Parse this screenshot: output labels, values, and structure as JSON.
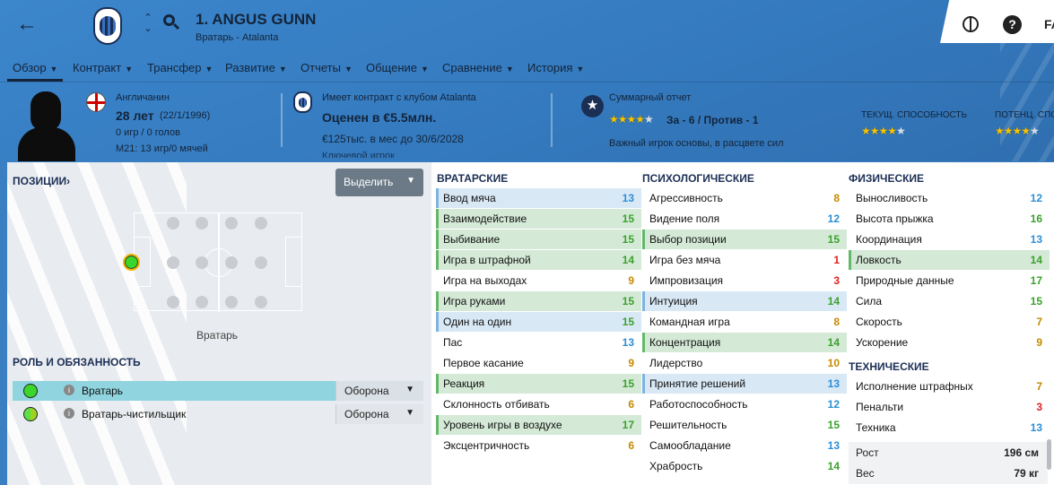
{
  "header": {
    "player_name": "1. ANGUS GUNN",
    "player_sub": "Вратарь - Atalanta",
    "fav_label": "FA"
  },
  "nav": [
    {
      "label": "Обзор"
    },
    {
      "label": "Контракт"
    },
    {
      "label": "Трансфер"
    },
    {
      "label": "Развитие"
    },
    {
      "label": "Отчеты"
    },
    {
      "label": "Общение"
    },
    {
      "label": "Сравнение"
    },
    {
      "label": "История"
    }
  ],
  "bio": {
    "nationality": "Англичанин",
    "age": "28 лет",
    "dob": "(22/1/1996)",
    "stats": "0 игр / 0 голов",
    "u21": "M21: 13 игр/0 мячей"
  },
  "contract": {
    "title": "Имеет контракт с клубом Atalanta",
    "value": "Оценен в €5.5млн.",
    "wage": "€125тыс. в мес до 30/6/2028",
    "role_partial": "Ключевой игрок"
  },
  "report": {
    "title": "Суммарный отчет",
    "stars": 4,
    "pros_cons": "За - 6 / Против - 1",
    "note": "Важный игрок основы, в расцвете сил"
  },
  "ability": {
    "current_label": "ТЕКУЩ. СПОСОБНОСТЬ",
    "current_stars": 4,
    "potential_label": "ПОТЕНЦ. СПОС",
    "potential_stars": 4
  },
  "left": {
    "positions_label": "ПОЗИЦИИ",
    "highlight_btn": "Выделить",
    "position_name": "Вратарь",
    "roles_label": "РОЛЬ И ОБЯЗАННОСТЬ",
    "roles": [
      {
        "name": "Вратарь",
        "duty": "Оборона",
        "selected": true
      },
      {
        "name": "Вратарь-чистильщик",
        "duty": "Оборона",
        "selected": false
      }
    ]
  },
  "attributes": {
    "goalkeeping": {
      "title": "ВРАТАРСКИЕ",
      "items": [
        {
          "name": "Ввод мяча",
          "value": 13,
          "hl": "b"
        },
        {
          "name": "Взаимодействие",
          "value": 15,
          "hl": "g"
        },
        {
          "name": "Выбивание",
          "value": 15,
          "hl": "g"
        },
        {
          "name": "Игра в штрафной",
          "value": 14,
          "hl": "g"
        },
        {
          "name": "Игра на выходах",
          "value": 9,
          "hl": "w"
        },
        {
          "name": "Игра руками",
          "value": 15,
          "hl": "g"
        },
        {
          "name": "Один на один",
          "value": 15,
          "hl": "b"
        },
        {
          "name": "Пас",
          "value": 13,
          "hl": "w"
        },
        {
          "name": "Первое касание",
          "value": 9,
          "hl": "w"
        },
        {
          "name": "Реакция",
          "value": 15,
          "hl": "g"
        },
        {
          "name": "Склонность отбивать",
          "value": 6,
          "hl": "w"
        },
        {
          "name": "Уровень игры в воздухе",
          "value": 17,
          "hl": "g"
        },
        {
          "name": "Эксцентричность",
          "value": 6,
          "hl": "w"
        }
      ]
    },
    "mental": {
      "title": "ПСИХОЛОГИЧЕСКИЕ",
      "items": [
        {
          "name": "Агрессивность",
          "value": 8,
          "hl": "w"
        },
        {
          "name": "Видение поля",
          "value": 12,
          "hl": "w"
        },
        {
          "name": "Выбор позиции",
          "value": 15,
          "hl": "g"
        },
        {
          "name": "Игра без мяча",
          "value": 1,
          "hl": "w"
        },
        {
          "name": "Импровизация",
          "value": 3,
          "hl": "w"
        },
        {
          "name": "Интуиция",
          "value": 14,
          "hl": "b"
        },
        {
          "name": "Командная игра",
          "value": 8,
          "hl": "w"
        },
        {
          "name": "Концентрация",
          "value": 14,
          "hl": "g"
        },
        {
          "name": "Лидерство",
          "value": 10,
          "hl": "w"
        },
        {
          "name": "Принятие решений",
          "value": 13,
          "hl": "b"
        },
        {
          "name": "Работоспособность",
          "value": 12,
          "hl": "w"
        },
        {
          "name": "Решительность",
          "value": 15,
          "hl": "w"
        },
        {
          "name": "Самообладание",
          "value": 13,
          "hl": "w"
        },
        {
          "name": "Храбрость",
          "value": 14,
          "hl": "w"
        }
      ]
    },
    "physical": {
      "title": "ФИЗИЧЕСКИЕ",
      "items": [
        {
          "name": "Выносливость",
          "value": 12,
          "hl": "w"
        },
        {
          "name": "Высота прыжка",
          "value": 16,
          "hl": "w"
        },
        {
          "name": "Координация",
          "value": 13,
          "hl": "w"
        },
        {
          "name": "Ловкость",
          "value": 14,
          "hl": "g"
        },
        {
          "name": "Природные данные",
          "value": 17,
          "hl": "w"
        },
        {
          "name": "Сила",
          "value": 15,
          "hl": "w"
        },
        {
          "name": "Скорость",
          "value": 7,
          "hl": "w"
        },
        {
          "name": "Ускорение",
          "value": 9,
          "hl": "w"
        }
      ]
    },
    "technical": {
      "title": "ТЕХНИЧЕСКИЕ",
      "items": [
        {
          "name": "Исполнение штрафных",
          "value": 7,
          "hl": "w"
        },
        {
          "name": "Пенальти",
          "value": 3,
          "hl": "w"
        },
        {
          "name": "Техника",
          "value": 13,
          "hl": "w"
        }
      ]
    }
  },
  "body": {
    "height_label": "Рост",
    "height": "196 см",
    "weight_label": "Вес",
    "weight": "79 кг"
  }
}
